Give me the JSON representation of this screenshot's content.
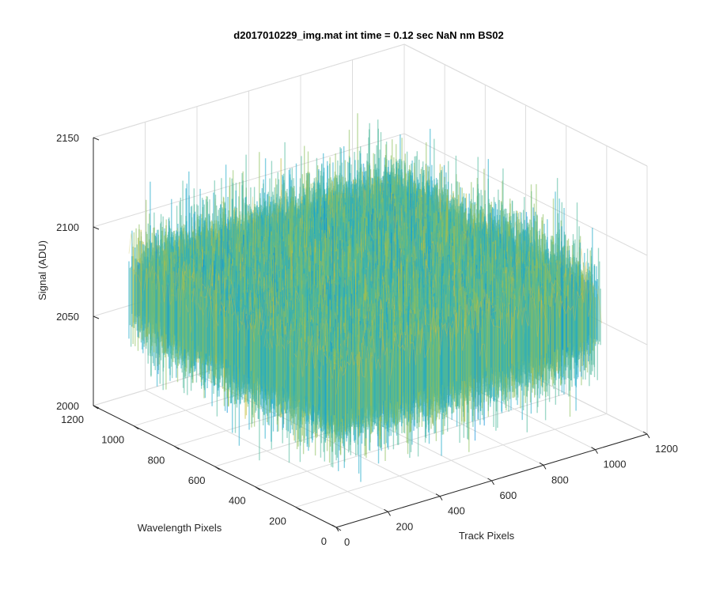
{
  "chart_data": {
    "type": "surface",
    "title": "d2017010229_img.mat int time = 0.12 sec  NaN nm BS02",
    "xlabel": "Track Pixels",
    "ylabel": "Wavelength Pixels",
    "zlabel": "Signal (ADU)",
    "xlim": [
      0,
      1200
    ],
    "ylim": [
      0,
      1200
    ],
    "zlim": [
      2000,
      2150
    ],
    "x_ticks": [
      0,
      200,
      400,
      600,
      800,
      1000,
      1200
    ],
    "y_ticks": [
      0,
      200,
      400,
      600,
      800,
      1000,
      1200
    ],
    "z_ticks": [
      2000,
      2050,
      2100,
      2150
    ],
    "data_x_range": [
      0,
      1024
    ],
    "data_y_range": [
      0,
      1024
    ],
    "signal_mean_approx": 2075,
    "signal_min_approx": 2010,
    "signal_max_approx": 2140,
    "colormap": [
      "#0072BD",
      "#0D8FD8",
      "#1FA9C9",
      "#4EB89A",
      "#8DBF5C",
      "#C2BE3C",
      "#E8BD3A"
    ],
    "grid": true
  }
}
